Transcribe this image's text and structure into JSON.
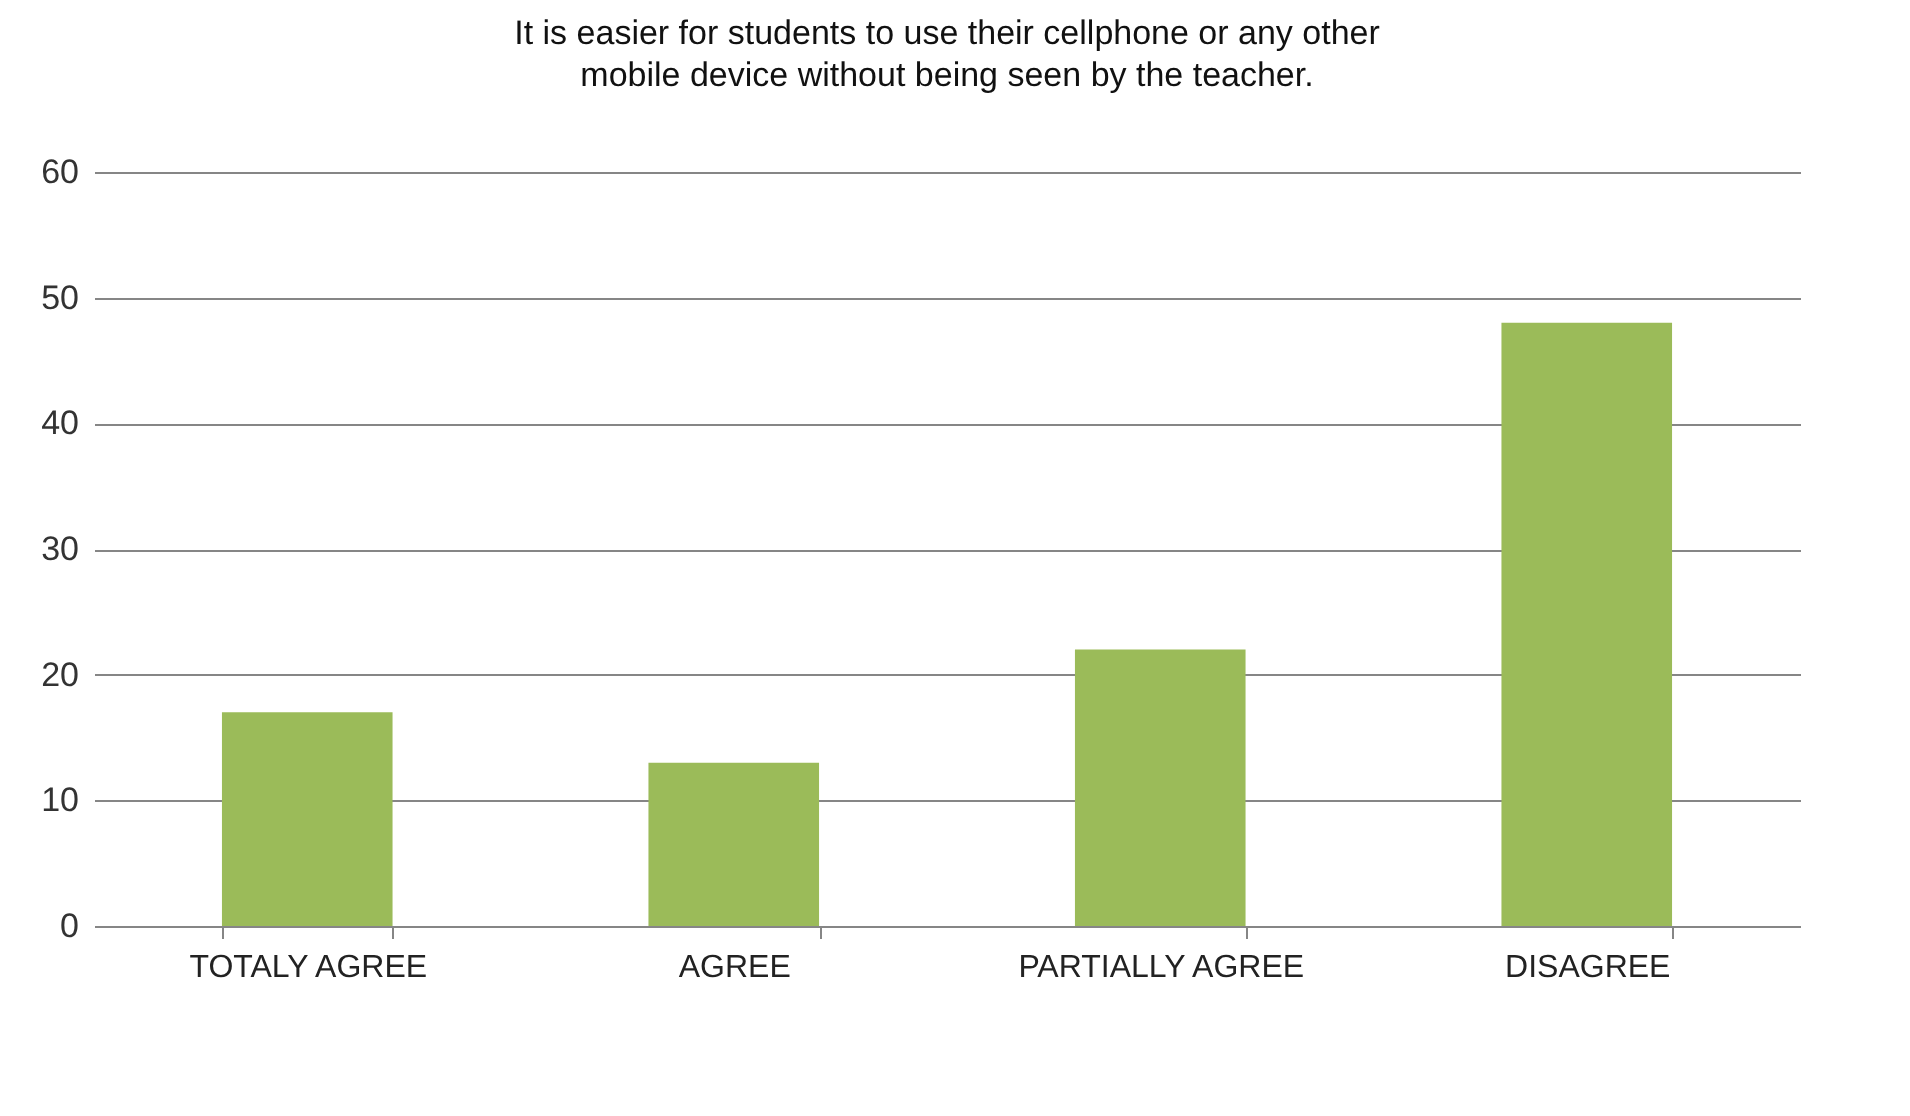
{
  "chart_data": {
    "type": "bar",
    "title": "It is easier for students to use their cellphone or any other mobile device without being seen by the teacher.",
    "categories": [
      "TOTALY AGREE",
      "AGREE",
      "PARTIALLY AGREE",
      "DISAGREE"
    ],
    "values": [
      17,
      13,
      22,
      48
    ],
    "color": "#9bbb59",
    "ylim": [
      0,
      60
    ],
    "yticks": [
      0,
      10,
      20,
      30,
      40,
      50,
      60
    ],
    "grid": "y"
  }
}
